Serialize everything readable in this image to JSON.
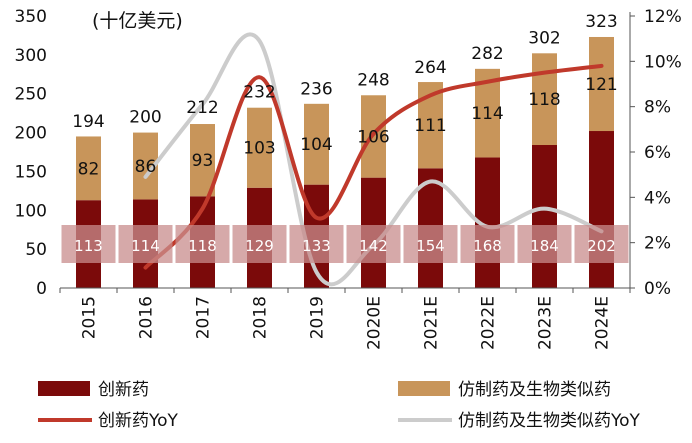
{
  "chart_data": {
    "type": "bar",
    "unit_label": "(十亿美元)",
    "categories": [
      "2015",
      "2016",
      "2017",
      "2018",
      "2019",
      "2020E",
      "2021E",
      "2022E",
      "2023E",
      "2024E"
    ],
    "series": [
      {
        "name": "创新药",
        "type": "bar",
        "stack": "total",
        "color": "#7B0A0A",
        "values": [
          113,
          114,
          118,
          129,
          133,
          142,
          154,
          168,
          184,
          202
        ]
      },
      {
        "name": "仿制药及生物类似药",
        "type": "bar",
        "stack": "total",
        "color": "#C8955A",
        "values": [
          82,
          86,
          93,
          103,
          104,
          106,
          111,
          114,
          118,
          121
        ]
      },
      {
        "name": "创新药YoY",
        "type": "line",
        "axis": "right",
        "color": "#C0392B",
        "values": [
          null,
          0.9,
          3.5,
          9.3,
          3.1,
          6.8,
          8.5,
          9.1,
          9.5,
          9.8
        ]
      },
      {
        "name": "仿制药及生物类似药YoY",
        "type": "line",
        "axis": "right",
        "color": "#CCCCCC",
        "values": [
          null,
          4.9,
          8.1,
          10.9,
          0.7,
          1.9,
          4.7,
          2.7,
          3.5,
          2.5
        ]
      }
    ],
    "totals": [
      194,
      200,
      212,
      232,
      236,
      248,
      264,
      282,
      302,
      323
    ],
    "ylim": [
      0,
      350
    ],
    "yticks": [
      "0",
      "50",
      "100",
      "150",
      "200",
      "250",
      "300",
      "350"
    ],
    "y2lim": [
      0,
      12
    ],
    "y2ticks": [
      "0%",
      "2%",
      "4%",
      "6%",
      "8%",
      "10%",
      "12%"
    ],
    "legend_position": "bottom",
    "grid": false
  }
}
